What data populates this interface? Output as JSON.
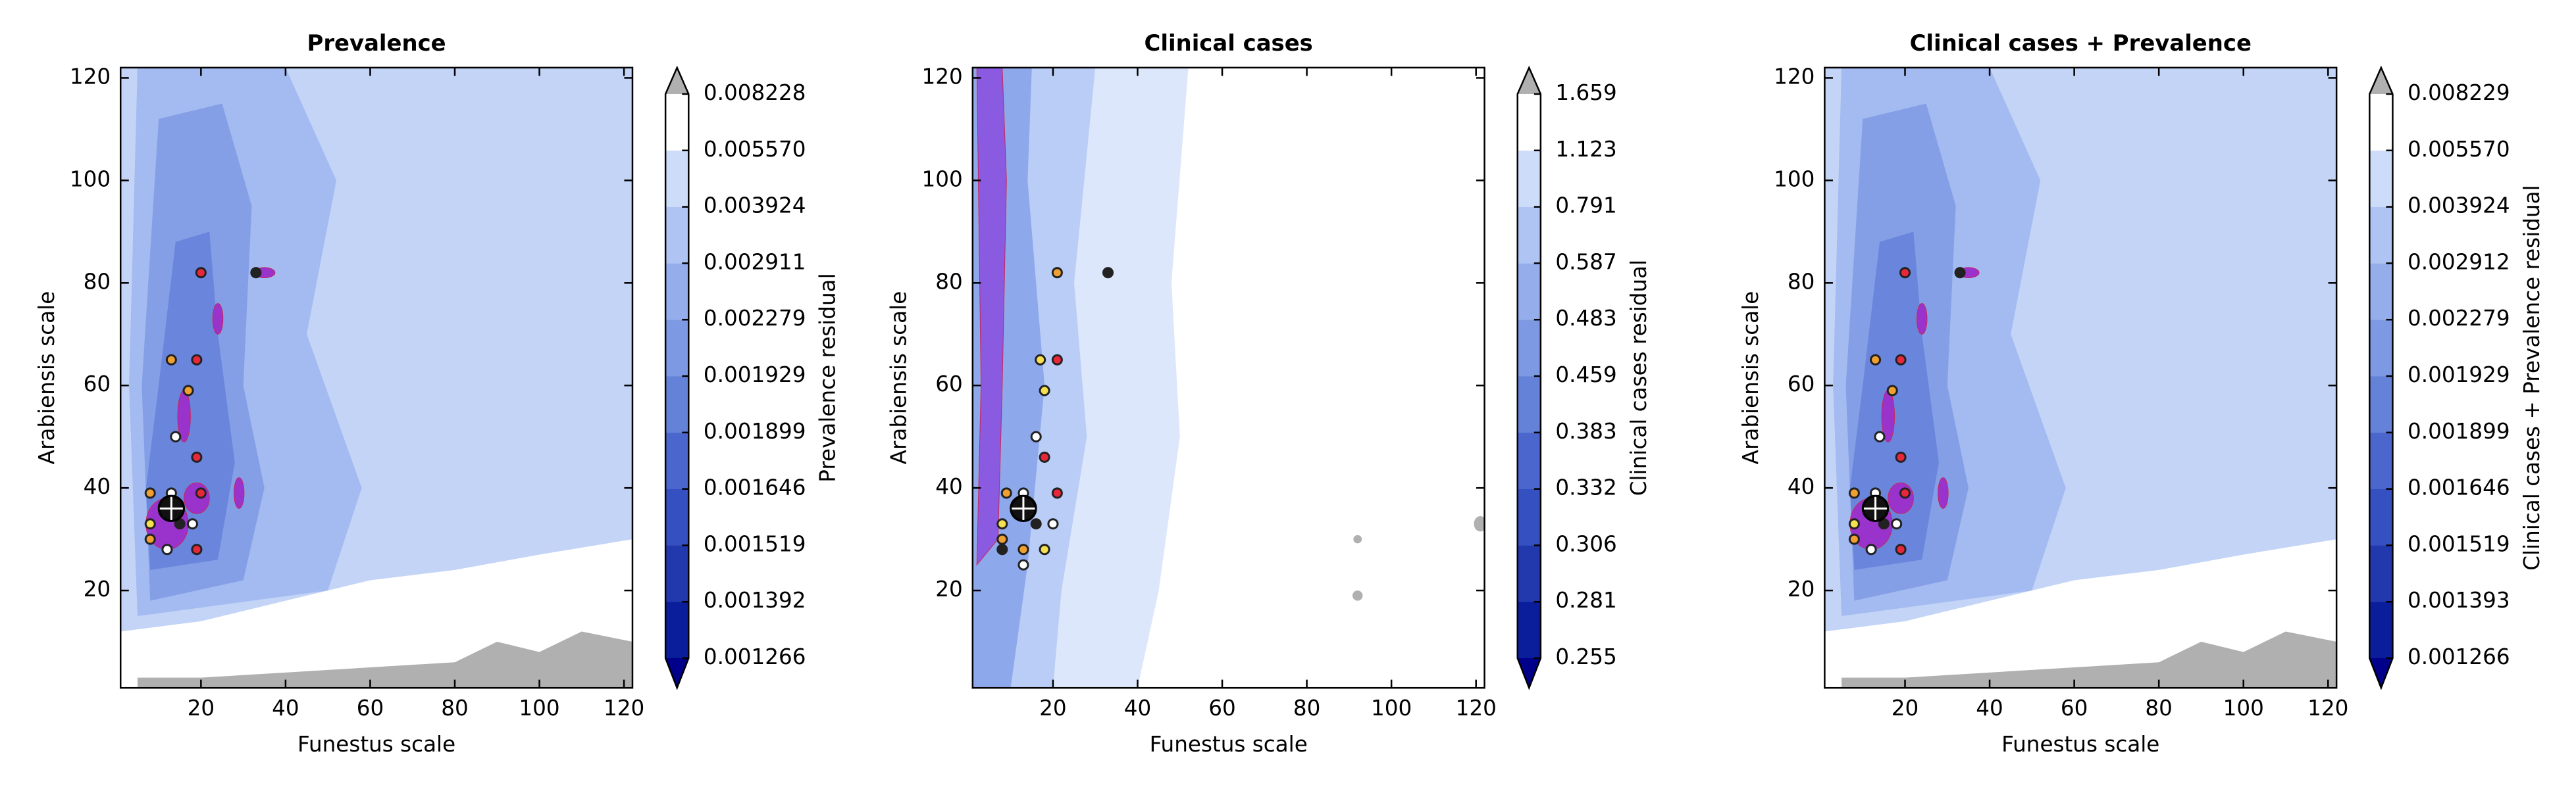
{
  "chart_data": [
    {
      "type": "contour",
      "title": "Prevalence",
      "xlabel": "Funestus scale",
      "ylabel": "Arabiensis scale",
      "xlim": [
        1,
        122
      ],
      "ylim": [
        1,
        122
      ],
      "xticks": [
        20,
        40,
        60,
        80,
        100,
        120
      ],
      "yticks": [
        20,
        40,
        60,
        80,
        100,
        120
      ],
      "colorbar": {
        "label": "Prevalence residual",
        "ticks": [
          0.001266,
          0.001392,
          0.001519,
          0.001646,
          0.001899,
          0.001929,
          0.002279,
          0.002911,
          0.003924,
          {
            "value": 0.00557,
            "label": "0.005570"
          },
          0.008228
        ],
        "colors": [
          "#0a1e9c",
          "#2238ad",
          "#3550c0",
          "#4b67cd",
          "#6582d9",
          "#7d99e3",
          "#95aeeb",
          "#afc4f3",
          "#cddcf9",
          "#ffffff"
        ],
        "under_color": "#00008b",
        "over_color": "#b0b0b0"
      },
      "points": {
        "x": [
          20,
          33,
          13,
          19,
          17,
          14,
          19,
          8,
          13,
          20,
          8,
          15,
          18,
          8,
          12,
          19
        ],
        "y": [
          82,
          82,
          65,
          65,
          59,
          50,
          46,
          39,
          39,
          39,
          33,
          33,
          33,
          30,
          28,
          28
        ],
        "colors": [
          "#e8283a",
          "#222222",
          "#f0a030",
          "#e8283a",
          "#f0a030",
          "#ffffff",
          "#e8283a",
          "#f0a030",
          "#ffffff",
          "#e8283a",
          "#f5e050",
          "#222222",
          "#ffffff",
          "#f0a030",
          "#ffffff",
          "#e8283a"
        ]
      },
      "target": {
        "x": 13,
        "y": 36
      }
    },
    {
      "type": "contour",
      "title": "Clinical cases",
      "xlabel": "Funestus scale",
      "ylabel": "Arabiensis scale",
      "xlim": [
        1,
        122
      ],
      "ylim": [
        1,
        122
      ],
      "xticks": [
        20,
        40,
        60,
        80,
        100,
        120
      ],
      "yticks": [
        20,
        40,
        60,
        80,
        100,
        120
      ],
      "colorbar": {
        "label": "Clinical cases residual",
        "ticks": [
          0.255,
          0.281,
          0.306,
          0.332,
          0.383,
          0.459,
          0.483,
          0.587,
          0.791,
          1.123,
          1.659
        ],
        "colors": [
          "#0a1e9c",
          "#2238ad",
          "#3550c0",
          "#4b67cd",
          "#6582d9",
          "#7d99e3",
          "#95aeeb",
          "#afc4f3",
          "#cddcf9",
          "#ffffff"
        ],
        "under_color": "#00008b",
        "over_color": "#b0b0b0"
      },
      "points": {
        "x": [
          21,
          33,
          17,
          21,
          18,
          16,
          18,
          9,
          13,
          21,
          8,
          16,
          20,
          8,
          8,
          13,
          18,
          13
        ],
        "y": [
          82,
          82,
          65,
          65,
          59,
          50,
          46,
          39,
          39,
          39,
          33,
          33,
          33,
          30,
          28,
          28,
          28,
          25
        ],
        "colors": [
          "#f0a030",
          "#222222",
          "#f5e050",
          "#e8283a",
          "#f5e050",
          "#ffffff",
          "#e8283a",
          "#f0a030",
          "#ffffff",
          "#e8283a",
          "#f5e050",
          "#222222",
          "#ffffff",
          "#f0a030",
          "#222222",
          "#f0a030",
          "#f5e050",
          "#ffffff"
        ]
      },
      "target": {
        "x": 13,
        "y": 36
      }
    },
    {
      "type": "contour",
      "title": "Clinical cases + Prevalence",
      "xlabel": "Funestus scale",
      "ylabel": "Arabiensis scale",
      "xlim": [
        1,
        122
      ],
      "ylim": [
        1,
        122
      ],
      "xticks": [
        20,
        40,
        60,
        80,
        100,
        120
      ],
      "yticks": [
        20,
        40,
        60,
        80,
        100,
        120
      ],
      "colorbar": {
        "label": "Clinical cases + Prevalence residual",
        "ticks": [
          0.001266,
          0.001393,
          0.001519,
          0.001646,
          0.001899,
          0.001929,
          0.002279,
          0.002912,
          0.003924,
          {
            "value": 0.00557,
            "label": "0.005570"
          },
          0.008229
        ],
        "colors": [
          "#0a1e9c",
          "#2238ad",
          "#3550c0",
          "#4b67cd",
          "#6582d9",
          "#7d99e3",
          "#95aeeb",
          "#afc4f3",
          "#cddcf9",
          "#ffffff"
        ],
        "under_color": "#00008b",
        "over_color": "#b0b0b0"
      },
      "points": {
        "x": [
          20,
          33,
          13,
          19,
          17,
          14,
          19,
          8,
          13,
          20,
          8,
          15,
          18,
          8,
          12,
          19
        ],
        "y": [
          82,
          82,
          65,
          65,
          59,
          50,
          46,
          39,
          39,
          39,
          33,
          33,
          33,
          30,
          28,
          28
        ],
        "colors": [
          "#e8283a",
          "#222222",
          "#f0a030",
          "#e8283a",
          "#f0a030",
          "#ffffff",
          "#e8283a",
          "#f0a030",
          "#ffffff",
          "#e8283a",
          "#f5e050",
          "#222222",
          "#ffffff",
          "#f0a030",
          "#ffffff",
          "#e8283a"
        ]
      },
      "target": {
        "x": 13,
        "y": 36
      }
    }
  ]
}
